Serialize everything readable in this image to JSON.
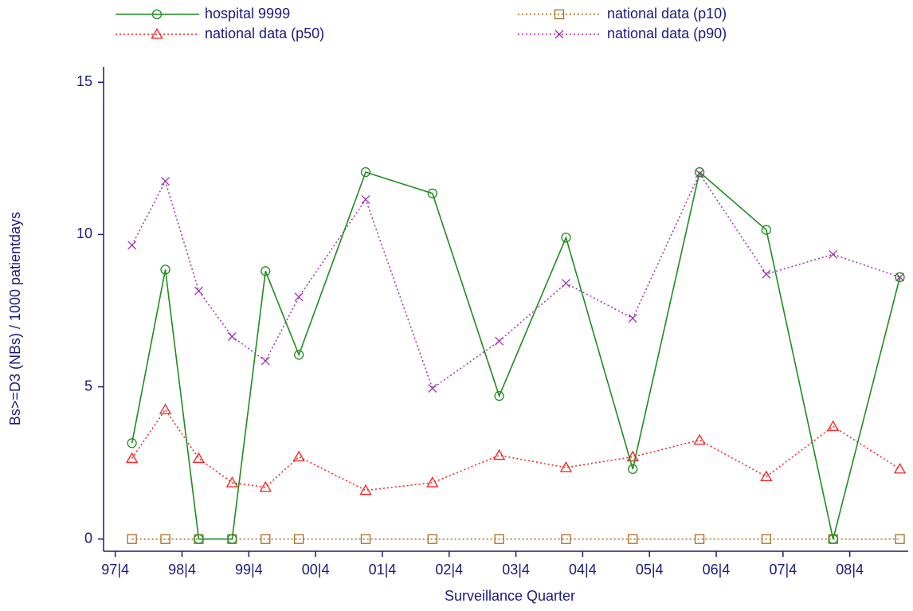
{
  "chart_data": {
    "type": "line",
    "x_label": "Surveillance Quarter",
    "y_label": "Bs>=D3 (NBs) / 1000 patientdays",
    "x": [
      0,
      2,
      4,
      6,
      8,
      10,
      14,
      18,
      22,
      26,
      30,
      34,
      38,
      42,
      46
    ],
    "xlim": [
      -1.7,
      46.5
    ],
    "xticks": [
      {
        "value": -1,
        "label": "97|4"
      },
      {
        "value": 3,
        "label": "98|4"
      },
      {
        "value": 7,
        "label": "99|4"
      },
      {
        "value": 11,
        "label": "00|4"
      },
      {
        "value": 15,
        "label": "01|4"
      },
      {
        "value": 19,
        "label": "02|4"
      },
      {
        "value": 23,
        "label": "03|4"
      },
      {
        "value": 27,
        "label": "04|4"
      },
      {
        "value": 31,
        "label": "05|4"
      },
      {
        "value": 35,
        "label": "06|4"
      },
      {
        "value": 39,
        "label": "07|4"
      },
      {
        "value": 43,
        "label": "08|4"
      }
    ],
    "ylim": [
      -0.4,
      15.4
    ],
    "yticks": [
      0,
      5,
      10,
      15
    ],
    "series": [
      {
        "name": "hospital 9999",
        "color": "#1f8c1f",
        "dash": "solid",
        "marker": "circle",
        "values": [
          3.15,
          8.85,
          0,
          0,
          8.8,
          6.05,
          12.05,
          11.35,
          4.7,
          9.9,
          2.3,
          12.05,
          10.15,
          0,
          8.6
        ]
      },
      {
        "name": "national data (p10)",
        "color": "#a86a1e",
        "dash": "dotted",
        "marker": "square",
        "values": [
          0,
          0,
          0,
          0,
          0,
          0,
          0,
          0,
          0,
          0,
          0,
          0,
          0,
          0,
          0
        ]
      },
      {
        "name": "national data (p50)",
        "color": "#ff1a1a",
        "dash": "dotted",
        "marker": "triangle",
        "values": [
          2.65,
          4.25,
          2.65,
          1.85,
          1.7,
          2.7,
          1.6,
          1.85,
          2.75,
          2.35,
          2.7,
          3.25,
          2.05,
          3.7,
          2.3
        ]
      },
      {
        "name": "national data (p90)",
        "color": "#a030b0",
        "dash": "dotted",
        "marker": "x",
        "values": [
          9.65,
          11.75,
          8.15,
          6.65,
          5.85,
          7.95,
          11.15,
          4.95,
          6.5,
          8.4,
          7.25,
          12.0,
          8.7,
          9.35,
          8.6
        ]
      }
    ]
  }
}
